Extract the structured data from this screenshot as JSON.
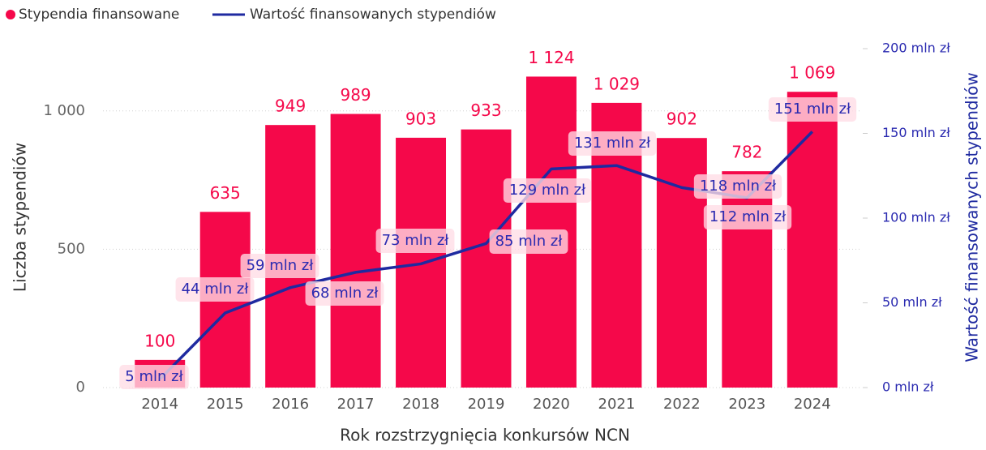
{
  "chart_data": {
    "type": "bar-line",
    "x_label": "Rok rozstrzygnięcia konkursów NCN",
    "y_label": "Liczba stypendiów",
    "y2_label": "Wartość finansowanych stypendiów",
    "categories": [
      "2014",
      "2015",
      "2016",
      "2017",
      "2018",
      "2019",
      "2020",
      "2021",
      "2022",
      "2023",
      "2024"
    ],
    "series": [
      {
        "name": "Stypendia finansowane",
        "color": "#f5084a",
        "type": "bar",
        "values": [
          100,
          635,
          949,
          989,
          903,
          933,
          1124,
          1029,
          902,
          782,
          1069
        ],
        "value_labels": [
          "100",
          "635",
          "949",
          "989",
          "903",
          "933",
          "1 124",
          "1 029",
          "902",
          "782",
          "1 069"
        ]
      },
      {
        "name": "Wartość finansowanych stypendiów",
        "color": "#1f2aa0",
        "type": "line",
        "axis": "y2",
        "values": [
          5,
          44,
          59,
          68,
          73,
          85,
          129,
          131,
          118,
          112,
          151
        ],
        "value_labels": [
          "5 mln zł",
          "44 mln zł",
          "59 mln zł",
          "68 mln zł",
          "73 mln zł",
          "85 mln zł",
          "129 mln zł",
          "131 mln zł",
          "118 mln zł",
          "112 mln zł",
          "151 mln zł"
        ]
      }
    ],
    "ylim": [
      0,
      1225
    ],
    "yticks": [
      0,
      500,
      {
        "value": 1000,
        "label": "1 000"
      }
    ],
    "y2lim": [
      0,
      200
    ],
    "y2ticks": [
      {
        "value": 0,
        "label": "0 mln zł"
      },
      {
        "value": 50,
        "label": "50 mln zł"
      },
      {
        "value": 100,
        "label": "100 mln zł"
      },
      {
        "value": 150,
        "label": "150 mln zł"
      },
      {
        "value": 200,
        "label": "200 mln zł"
      }
    ],
    "grid": true,
    "legend": "top-left"
  }
}
